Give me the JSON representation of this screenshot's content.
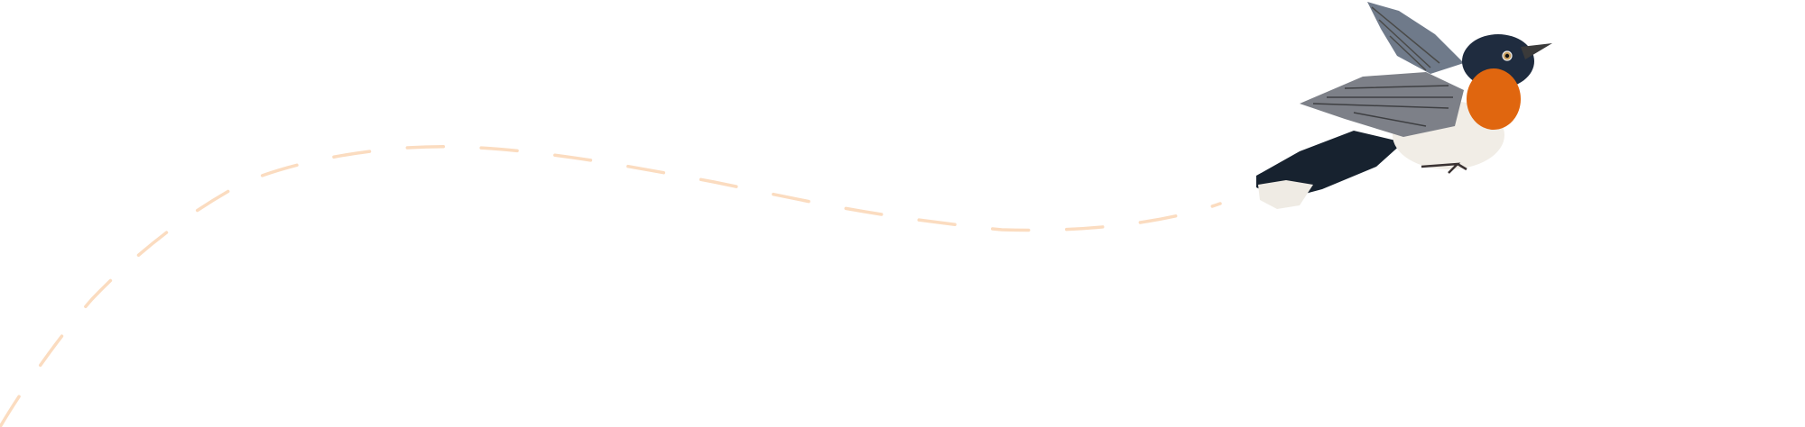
{
  "illustration": {
    "subject": "bird-icon",
    "trail_color": "#fbdcc0",
    "colors": {
      "throat": "#e0660f",
      "head": "#1f2c3f",
      "wing": "#7d8088",
      "belly": "#f1ede6",
      "tail": "#17222f"
    }
  }
}
